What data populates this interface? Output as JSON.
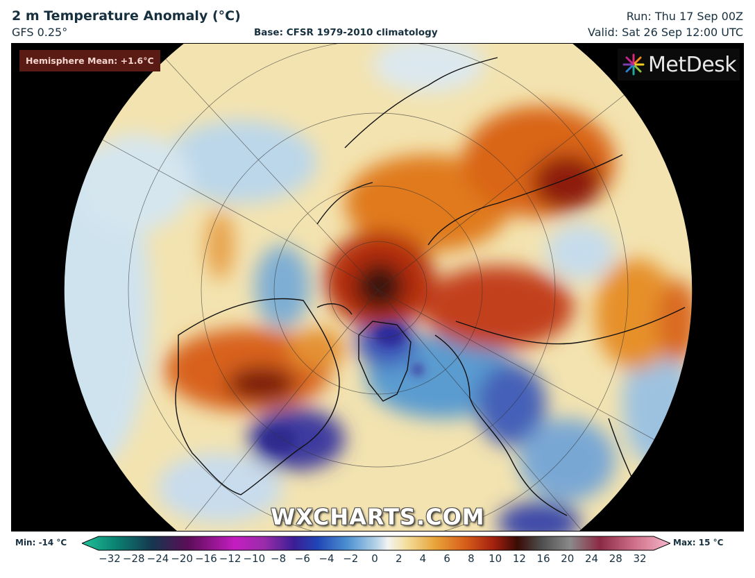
{
  "header": {
    "title": "2 m Temperature Anomaly (°C)",
    "model": "GFS 0.25°",
    "base": "Base: CFSR 1979-2010 climatology",
    "run": "Run: Thu 17 Sep 00Z",
    "valid": "Valid: Sat 26 Sep 12:00 UTC"
  },
  "map": {
    "projection": "north-polar-stereographic",
    "hemisphere_mean_label": "Hemisphere Mean: +1.6°C",
    "brand": "MetDesk",
    "brand_icon": "metdesk-flower-icon",
    "watermark": "WXCHARTS.COM"
  },
  "colorbar": {
    "min_label": "Min: -14 °C",
    "max_label": "Max: 15 °C",
    "ticks": [
      "−32",
      "−28",
      "−24",
      "−20",
      "−16",
      "−12",
      "−10",
      "−8",
      "−6",
      "−4",
      "−2",
      "0",
      "2",
      "4",
      "6",
      "8",
      "10",
      "12",
      "16",
      "20",
      "24",
      "28",
      "32"
    ]
  },
  "colors": {
    "background": "#000000",
    "disk_base": "#f3e3b0",
    "hemisphere_badge": "#5a1b14",
    "title_text": "#17303f"
  }
}
